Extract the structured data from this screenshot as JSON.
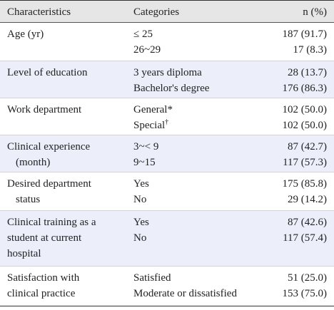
{
  "table": {
    "header": [
      "Characteristics",
      "Categories",
      "n (%)"
    ],
    "rows": [
      {
        "characteristic": [
          "Age (yr)"
        ],
        "categories": [
          "≤ 25",
          "26~29"
        ],
        "n": [
          "187 (91.7)",
          "17 (8.3)"
        ]
      },
      {
        "characteristic": [
          "Level of education"
        ],
        "categories": [
          "3 years diploma",
          "Bachelor's degree"
        ],
        "n": [
          "28 (13.7)",
          "176 (86.3)"
        ]
      },
      {
        "characteristic": [
          "Work department"
        ],
        "categories": [
          "General*",
          "Special"
        ],
        "category_marks": [
          "",
          "†"
        ],
        "n": [
          "102 (50.0)",
          "102 (50.0)"
        ]
      },
      {
        "characteristic": [
          "Clinical experience",
          "(month)"
        ],
        "categories": [
          "3~< 9",
          "9~15"
        ],
        "n": [
          "87 (42.7)",
          "117 (57.3)"
        ]
      },
      {
        "characteristic": [
          "Desired department",
          "status"
        ],
        "categories": [
          "Yes",
          "No"
        ],
        "n": [
          "175 (85.8)",
          "29 (14.2)"
        ]
      },
      {
        "characteristic": [
          "Clinical training as a",
          "student at current",
          "hospital"
        ],
        "categories": [
          "Yes",
          "No"
        ],
        "n": [
          "87 (42.6)",
          "117 (57.4)"
        ]
      },
      {
        "characteristic": [
          "Satisfaction with",
          "clinical practice"
        ],
        "categories": [
          "Satisfied",
          "Moderate or dissatisfied"
        ],
        "n": [
          "51 (25.0)",
          "153 (75.0)"
        ]
      }
    ]
  }
}
